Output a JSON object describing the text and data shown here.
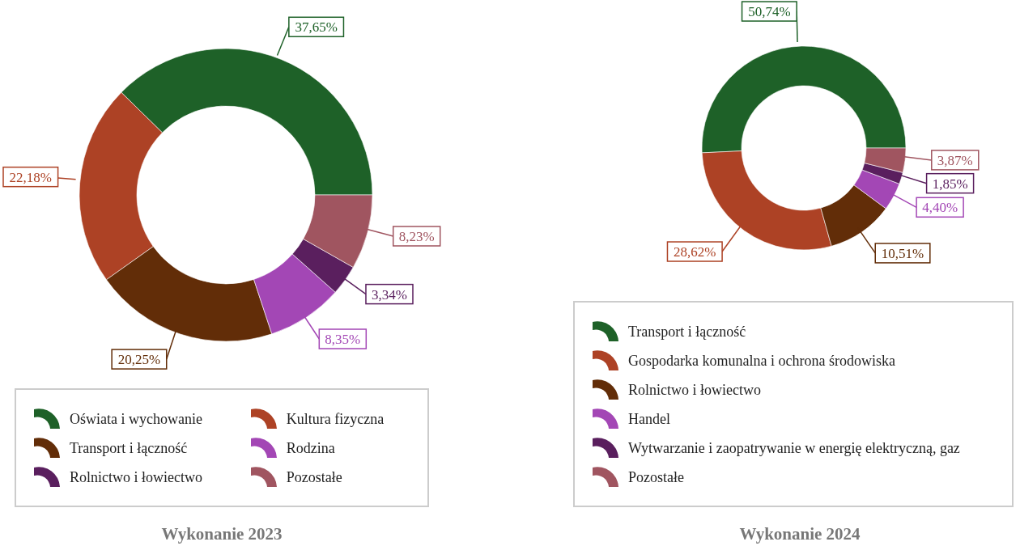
{
  "chart_data": [
    {
      "type": "donut",
      "title": "Wykonanie 2023",
      "legend": "bottom",
      "categories": [
        "Oświata i wychowanie",
        "Kultura fizyczna",
        "Transport i łączność",
        "Rodzina",
        "Rolnictwo i łowiectwo",
        "Pozostałe"
      ],
      "values": [
        37.65,
        22.18,
        20.25,
        8.35,
        3.34,
        8.23
      ],
      "value_labels": [
        "37,65%",
        "22,18%",
        "20,25%",
        "8,35%",
        "3,34%",
        "8,23%"
      ],
      "colors": [
        "#1e6128",
        "#ad4225",
        "#622d08",
        "#a347b5",
        "#5a1f5e",
        "#a05560"
      ]
    },
    {
      "type": "donut",
      "title": "Wykonanie 2024",
      "legend": "bottom",
      "categories": [
        "Transport i łączność",
        "Gospodarka komunalna i ochrona środowiska",
        "Rolnictwo i łowiectwo",
        "Handel",
        "Wytwarzanie i zaopatrywanie w energię elektryczną, gaz",
        "Pozostałe"
      ],
      "values": [
        50.74,
        28.62,
        10.51,
        4.4,
        1.85,
        3.87
      ],
      "value_labels": [
        "50,74%",
        "28,62%",
        "10,51%",
        "4,40%",
        "1,85%",
        "3,87%"
      ],
      "colors": [
        "#1e6128",
        "#ad4225",
        "#622d08",
        "#a347b5",
        "#5a1f5e",
        "#a05560"
      ]
    }
  ]
}
